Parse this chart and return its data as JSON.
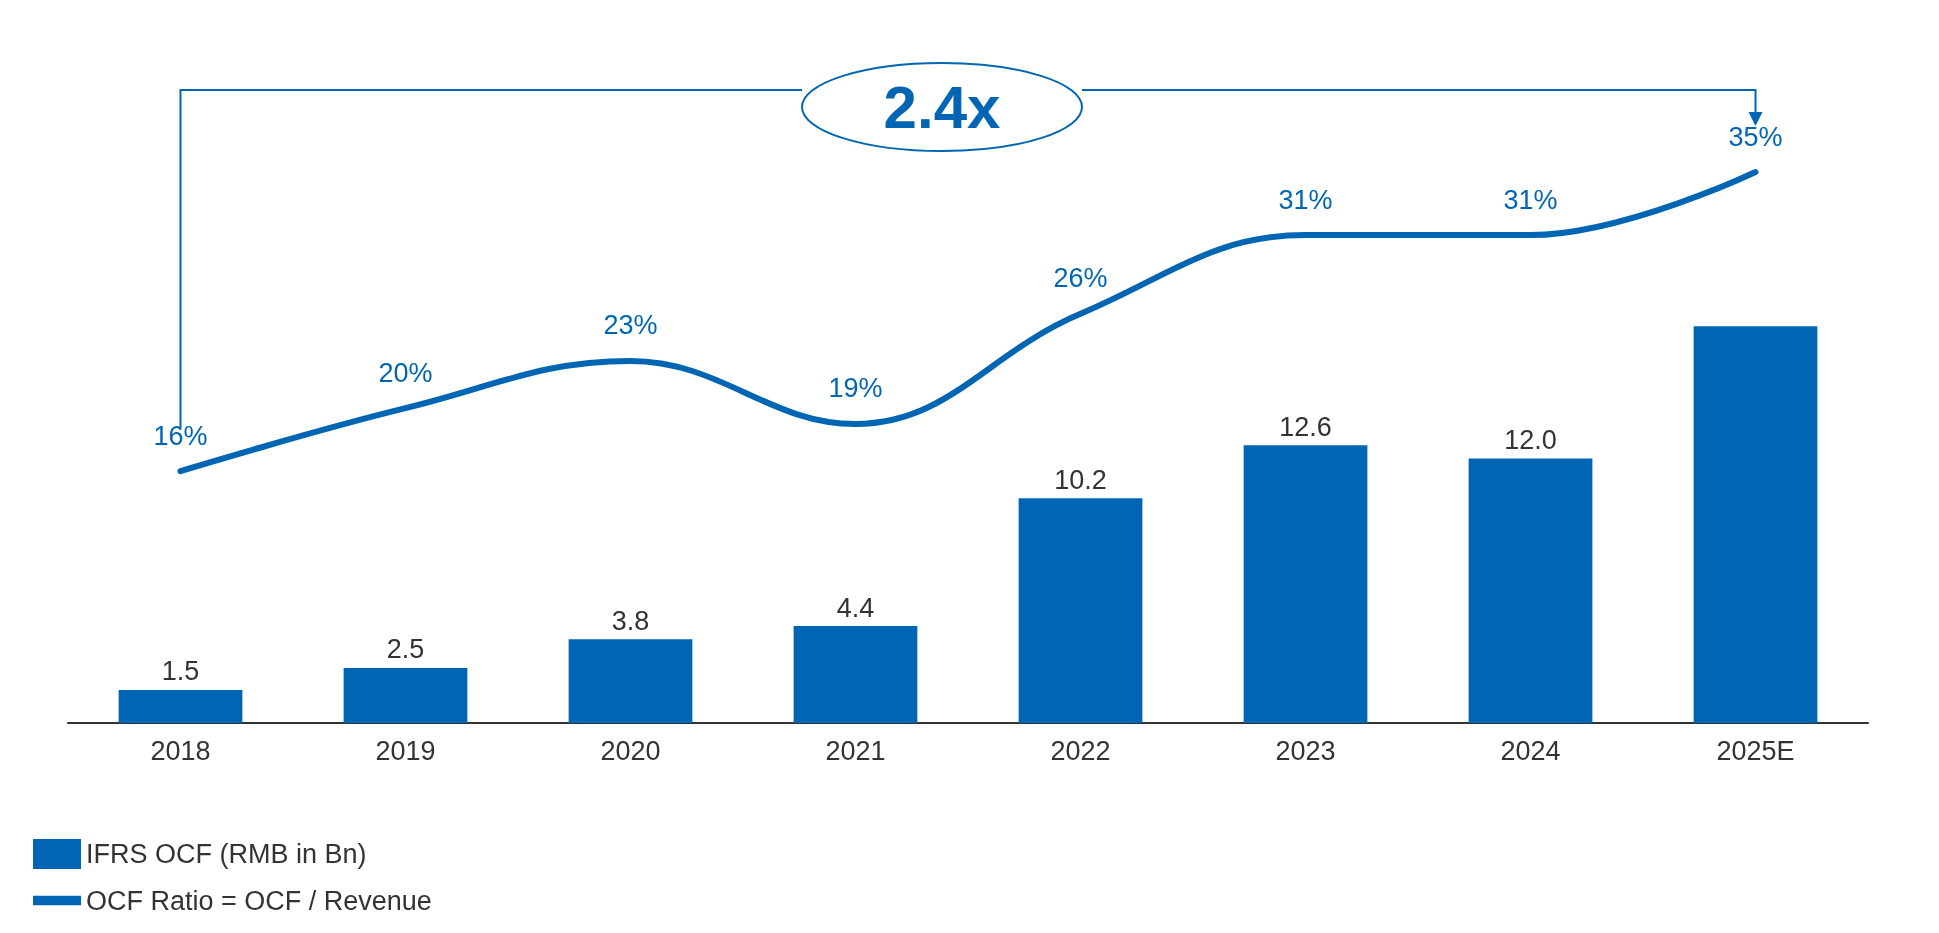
{
  "chart_data": {
    "type": "bar",
    "categories": [
      "2018",
      "2019",
      "2020",
      "2021",
      "2022",
      "2023",
      "2024",
      "2025E"
    ],
    "series": [
      {
        "name": "IFRS OCF (RMB in Bn)",
        "color": "#0066b3",
        "values": [
          1.5,
          2.5,
          3.8,
          4.4,
          10.2,
          12.6,
          12.0,
          18.0
        ],
        "value_labels": [
          "1.5",
          "2.5",
          "3.8",
          "4.4",
          "10.2",
          "12.6",
          "12.0",
          null
        ]
      },
      {
        "name": "OCF Ratio = OCF / Revenue",
        "type": "line",
        "axis": "y2",
        "color": "#0066b3",
        "values": [
          16,
          20,
          23,
          19,
          26,
          31,
          31,
          35
        ],
        "value_labels": [
          "16%",
          "20%",
          "23%",
          "19%",
          "26%",
          "31%",
          "31%",
          "35%"
        ]
      }
    ],
    "annotations": [
      "2.4x"
    ],
    "legend": "bottom left",
    "grid": false,
    "marker": "none",
    "line_style": "solid"
  }
}
